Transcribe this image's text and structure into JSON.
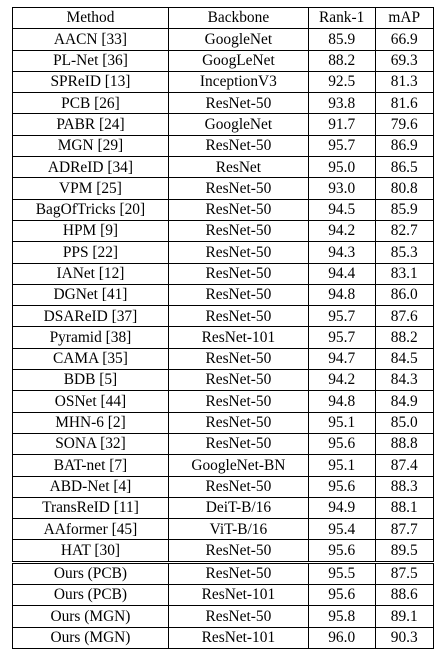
{
  "table": {
    "headers": [
      "Method",
      "Backbone",
      "Rank-1",
      "mAP"
    ],
    "rows": [
      [
        "AACN [33]",
        "GoogleNet",
        "85.9",
        "66.9"
      ],
      [
        "PL-Net [36]",
        "GoogLeNet",
        "88.2",
        "69.3"
      ],
      [
        "SPReID [13]",
        "InceptionV3",
        "92.5",
        "81.3"
      ],
      [
        "PCB [26]",
        "ResNet-50",
        "93.8",
        "81.6"
      ],
      [
        "PABR [24]",
        "GoogleNet",
        "91.7",
        "79.6"
      ],
      [
        "MGN [29]",
        "ResNet-50",
        "95.7",
        "86.9"
      ],
      [
        "ADReID [34]",
        "ResNet",
        "95.0",
        "86.5"
      ],
      [
        "VPM [25]",
        "ResNet-50",
        "93.0",
        "80.8"
      ],
      [
        "BagOfTricks [20]",
        "ResNet-50",
        "94.5",
        "85.9"
      ],
      [
        "HPM [9]",
        "ResNet-50",
        "94.2",
        "82.7"
      ],
      [
        "PPS [22]",
        "ResNet-50",
        "94.3",
        "85.3"
      ],
      [
        "IANet [12]",
        "ResNet-50",
        "94.4",
        "83.1"
      ],
      [
        "DGNet [41]",
        "ResNet-50",
        "94.8",
        "86.0"
      ],
      [
        "DSAReID [37]",
        "ResNet-50",
        "95.7",
        "87.6"
      ],
      [
        "Pyramid [38]",
        "ResNet-101",
        "95.7",
        "88.2"
      ],
      [
        "CAMA [35]",
        "ResNet-50",
        "94.7",
        "84.5"
      ],
      [
        "BDB [5]",
        "ResNet-50",
        "94.2",
        "84.3"
      ],
      [
        "OSNet [44]",
        "ResNet-50",
        "94.8",
        "84.9"
      ],
      [
        "MHN-6 [2]",
        "ResNet-50",
        "95.1",
        "85.0"
      ],
      [
        "SONA [32]",
        "ResNet-50",
        "95.6",
        "88.8"
      ],
      [
        "BAT-net [7]",
        "GoogleNet-BN",
        "95.1",
        "87.4"
      ],
      [
        "ABD-Net [4]",
        "ResNet-50",
        "95.6",
        "88.3"
      ],
      [
        "TransReID [11]",
        "DeiT-B/16",
        "94.9",
        "88.1"
      ],
      [
        "AAformer [45]",
        "ViT-B/16",
        "95.4",
        "87.7"
      ],
      [
        "HAT [30]",
        "ResNet-50",
        "95.6",
        "89.5"
      ]
    ],
    "ours_rows": [
      [
        "Ours (PCB)",
        "ResNet-50",
        "95.5",
        "87.5"
      ],
      [
        "Ours (PCB)",
        "ResNet-101",
        "95.6",
        "88.6"
      ],
      [
        "Ours (MGN)",
        "ResNet-50",
        "95.8",
        "89.1"
      ],
      [
        "Ours (MGN)",
        "ResNet-101",
        "96.0",
        "90.3"
      ]
    ],
    "bold_cells": [
      [
        3,
        2
      ],
      [
        3,
        3
      ]
    ]
  }
}
